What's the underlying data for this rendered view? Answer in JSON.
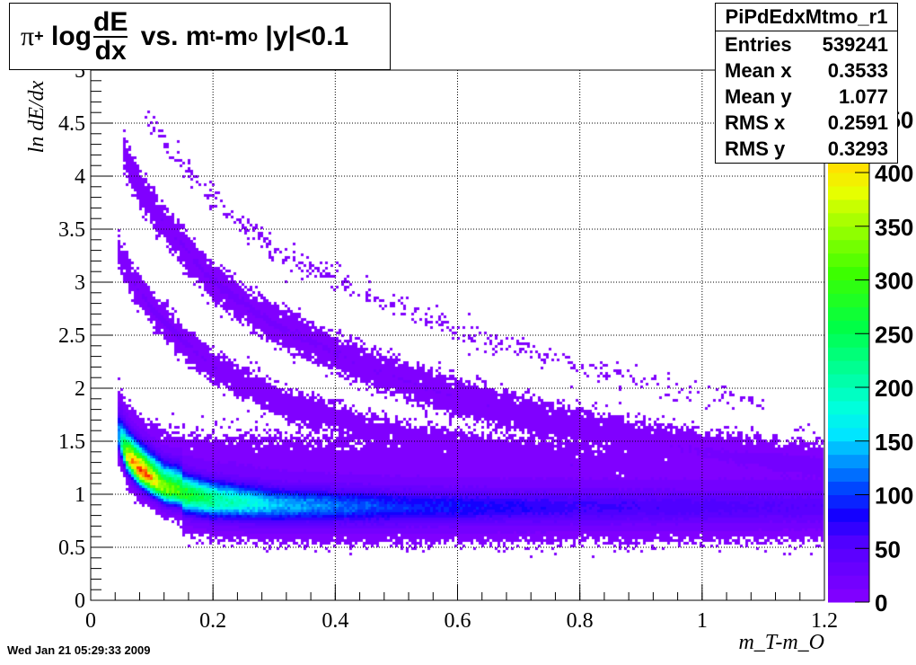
{
  "chart_data": {
    "type": "heatmap",
    "title": {
      "prefix": "π",
      "sup": "+",
      "log": "log",
      "num": "dE",
      "den": "dx",
      "middle": " vs. m",
      "sub_t": "t",
      "dash": "-m",
      "sub_o": "o",
      "suffix": " |y|<0.1"
    },
    "xlabel": "m_T-m_O",
    "ylabel": "ln dE/dx",
    "xlim": [
      0,
      1.2
    ],
    "ylim": [
      0,
      5
    ],
    "x_ticks": [
      "0",
      "0.2",
      "0.4",
      "0.6",
      "0.8",
      "1",
      "1.2"
    ],
    "y_ticks": [
      "0",
      "0.5",
      "1",
      "1.5",
      "2",
      "2.5",
      "3",
      "3.5",
      "4",
      "4.5",
      "5"
    ],
    "grid": true,
    "colorbar": {
      "range": [
        0,
        490
      ],
      "ticks": [
        "0",
        "50",
        "100",
        "150",
        "200",
        "250",
        "300",
        "350",
        "400",
        "450"
      ]
    },
    "bands": [
      {
        "name": "pion",
        "x": [
          0.045,
          0.06,
          0.08,
          0.12,
          0.2,
          0.3,
          0.5,
          0.8,
          1.2
        ],
        "center": [
          1.55,
          1.35,
          1.22,
          1.05,
          0.95,
          0.9,
          0.88,
          0.88,
          0.88
        ],
        "sigma": 0.1,
        "peak": [
          120,
          380,
          470,
          330,
          220,
          140,
          90,
          60,
          40
        ]
      },
      {
        "name": "electron-broad",
        "x": [
          0.08,
          0.3,
          0.6,
          1.2
        ],
        "center": [
          1.3,
          1.27,
          1.25,
          1.22
        ],
        "sigma": 0.13,
        "peak": [
          6,
          5,
          4,
          4
        ]
      },
      {
        "name": "kaon",
        "x": [
          0.045,
          0.07,
          0.1,
          0.15,
          0.2,
          0.3,
          0.45,
          0.6,
          0.8
        ],
        "center": [
          3.3,
          3.0,
          2.75,
          2.45,
          2.2,
          1.9,
          1.62,
          1.45,
          1.3
        ],
        "sigma": 0.07,
        "peak": [
          3,
          6,
          7,
          7,
          6,
          5,
          4,
          3,
          2
        ]
      },
      {
        "name": "proton",
        "x": [
          0.055,
          0.08,
          0.12,
          0.2,
          0.3,
          0.45,
          0.6,
          0.8,
          1.0,
          1.2
        ],
        "center": [
          4.2,
          3.9,
          3.55,
          3.0,
          2.6,
          2.2,
          1.9,
          1.62,
          1.42,
          1.28
        ],
        "sigma": 0.08,
        "peak": [
          3,
          5,
          6,
          7,
          7,
          6,
          6,
          5,
          5,
          5
        ]
      },
      {
        "name": "deuteron",
        "x": [
          0.09,
          0.15,
          0.2,
          0.3,
          0.45,
          0.6,
          0.8,
          1.0,
          1.1
        ],
        "center": [
          4.55,
          4.1,
          3.8,
          3.3,
          2.9,
          2.55,
          2.2,
          1.95,
          1.85
        ],
        "sigma": 0.06,
        "peak": [
          0.3,
          0.4,
          0.4,
          0.4,
          0.35,
          0.3,
          0.25,
          0.2,
          0.15
        ]
      }
    ]
  },
  "stats": {
    "name": "PiPdEdxMtmo_r1",
    "rows": [
      {
        "label": "Entries",
        "value": "539241"
      },
      {
        "label": "Mean x",
        "value": "0.3533"
      },
      {
        "label": "Mean y",
        "value": "1.077"
      },
      {
        "label": "RMS x",
        "value": "0.2591"
      },
      {
        "label": "RMS y",
        "value": "0.3293"
      }
    ]
  },
  "date": "Wed Jan 21 05:29:33 2009"
}
